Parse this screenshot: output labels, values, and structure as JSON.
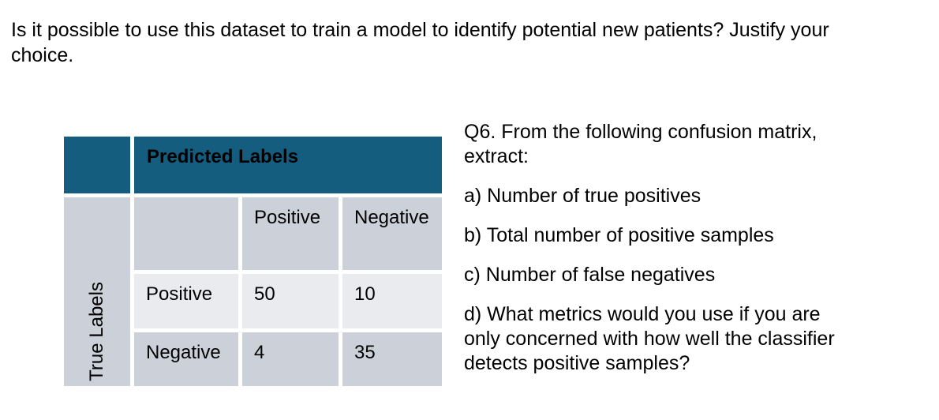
{
  "page": {
    "intro_text": "Is it possible to use this dataset to train a model to identify potential new patients? Justify your choice."
  },
  "confusion_table": {
    "col_axis_label": "Predicted Labels",
    "row_axis_label": "True Labels",
    "col_headers": [
      "Positive",
      "Negative"
    ],
    "rows": [
      {
        "label": "Positive",
        "values": [
          "50",
          "10"
        ]
      },
      {
        "label": "Negative",
        "values": [
          "4",
          "35"
        ]
      }
    ],
    "colors": {
      "header_teal": "#155d7f",
      "medium_gray": "#cbd0d9",
      "light_gray": "#e9ebef",
      "gap_white": "#ffffff",
      "text": "#000000"
    }
  },
  "question_block": {
    "intro": "Q6. From the following confusion matrix, extract:",
    "items": [
      "a) Number of true positives",
      "b) Total number of positive samples",
      "c) Number of false negatives",
      "d) What metrics would you use if you are only concerned with how well the classifier detects positive samples?"
    ]
  }
}
